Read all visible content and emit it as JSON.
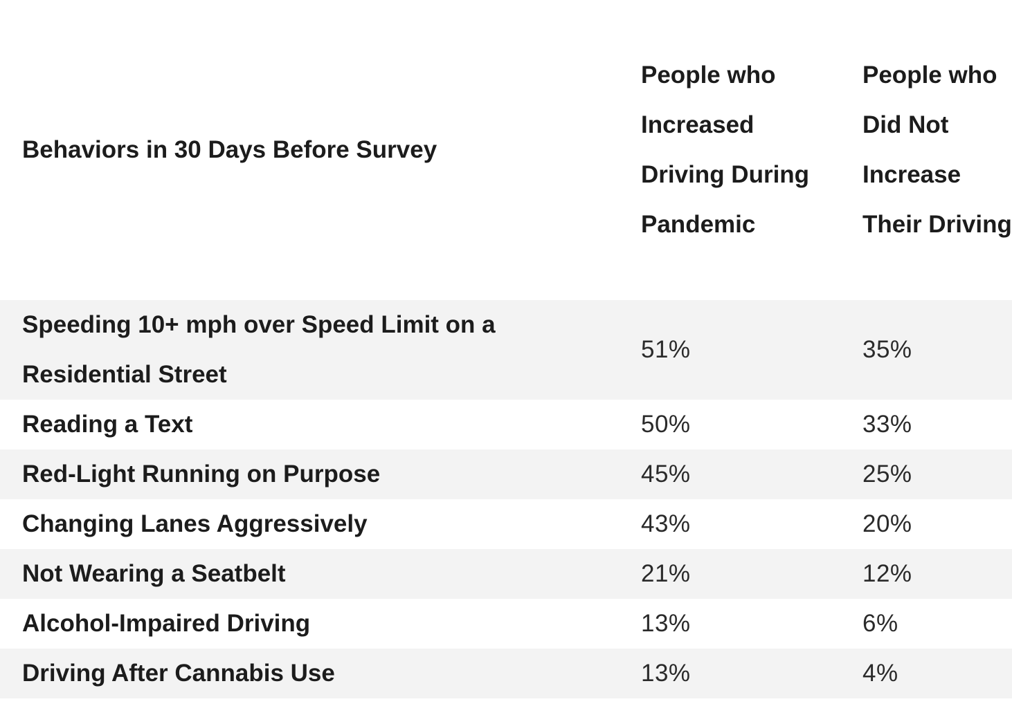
{
  "table": {
    "headers": [
      "Behaviors in 30 Days Before Survey",
      "People who Increased Driving During Pandemic",
      "People who Did Not Increase Their Driving"
    ],
    "rows": [
      {
        "behavior": "Speeding 10+ mph over Speed Limit on a Residential Street",
        "increased": "51%",
        "not_increased": "35%"
      },
      {
        "behavior": "Reading a Text",
        "increased": "50%",
        "not_increased": "33%"
      },
      {
        "behavior": "Red-Light Running on Purpose",
        "increased": "45%",
        "not_increased": "25%"
      },
      {
        "behavior": "Changing Lanes Aggressively",
        "increased": "43%",
        "not_increased": "20%"
      },
      {
        "behavior": "Not Wearing a Seatbelt",
        "increased": "21%",
        "not_increased": "12%"
      },
      {
        "behavior": "Alcohol-Impaired Driving",
        "increased": "13%",
        "not_increased": "6%"
      },
      {
        "behavior": "Driving After Cannabis Use",
        "increased": "13%",
        "not_increased": "4%"
      }
    ]
  },
  "colors": {
    "stripe": "#f3f3f3",
    "background": "#ffffff",
    "text": "#1c1c1c"
  }
}
